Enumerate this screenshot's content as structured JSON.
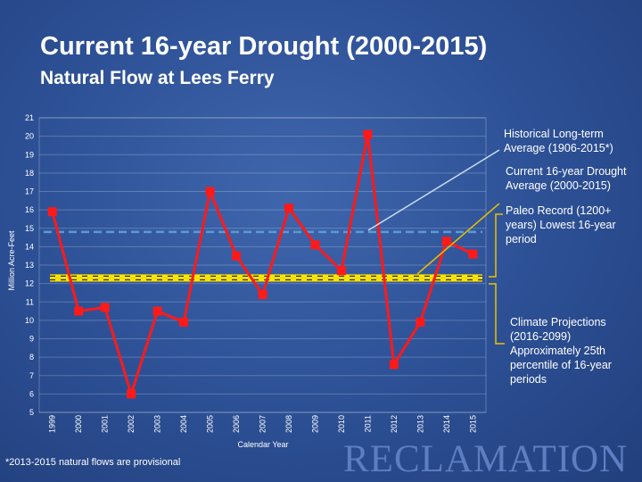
{
  "slide": {
    "title": "Current 16-year Drought (2000-2015)",
    "subtitle": "Natural Flow at Lees Ferry",
    "footnote": "*2013-2015 natural flows are provisional",
    "logo": "RECLAMATION"
  },
  "annotations": {
    "historical": "Historical Long-term Average (1906-2015*)",
    "current": "Current 16-year Drought Average (2000-2015)",
    "paleo": "Paleo Record (1200+ years) Lowest 16-year period",
    "climate": "Climate Projections (2016-2099) Approximately 25th percentile of 16-year periods"
  },
  "colors": {
    "background": "#2c4f94",
    "series": "#ff1a1a",
    "historical_line": "#5b9bd5",
    "drought_line": "#ffe600",
    "drought_line_alt": "#333333",
    "annotation_connector_historical": "#c9dcf2",
    "annotation_connector_current": "#e8c000",
    "bracket": "#f0c000"
  },
  "chart_data": {
    "type": "line",
    "x": [
      "1999",
      "2000",
      "2001",
      "2002",
      "2003",
      "2004",
      "2005",
      "2006",
      "2007",
      "2008",
      "2009",
      "2010",
      "2011",
      "2012",
      "2013",
      "2014",
      "2015"
    ],
    "series": [
      {
        "values": [
          15.9,
          10.5,
          10.7,
          6.0,
          10.5,
          9.9,
          17.0,
          13.5,
          11.4,
          16.1,
          14.1,
          12.7,
          20.1,
          7.6,
          9.9,
          14.3,
          13.6
        ]
      }
    ],
    "reference_lines": [
      {
        "value": 14.8,
        "style": "dashed"
      },
      {
        "value": 12.4,
        "style": "yellow-black dashed"
      },
      {
        "value": 12.2,
        "style": "yellow-black dashed"
      }
    ],
    "ylim": [
      5,
      21
    ],
    "yticks": [
      5,
      6,
      7,
      8,
      9,
      10,
      11,
      12,
      13,
      14,
      15,
      16,
      17,
      18,
      19,
      20,
      21
    ],
    "ylabel": "Million Acre-Feet",
    "xlabel": "Calendar Year",
    "grid": "horizontal",
    "legend": "none"
  }
}
